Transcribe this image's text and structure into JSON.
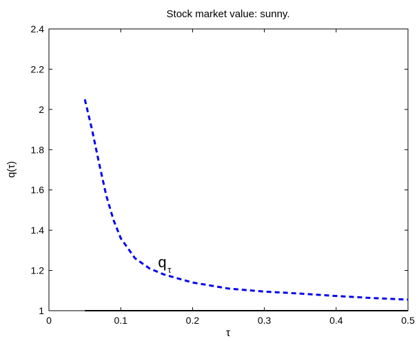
{
  "chart_data": {
    "type": "line",
    "title": "Stock market value: sunny.",
    "xlabel": "τ",
    "ylabel": "q(τ)",
    "xlim": [
      0,
      0.5
    ],
    "ylim": [
      1,
      2.4
    ],
    "xticks": [
      "0",
      "0.1",
      "0.2",
      "0.3",
      "0.4",
      "0.5"
    ],
    "yticks": [
      "1",
      "1.2",
      "1.4",
      "1.6",
      "1.8",
      "2",
      "2.2",
      "2.4"
    ],
    "grid": false,
    "legend": "none",
    "series": [
      {
        "name": "",
        "style": "dashed",
        "color": "#0000ee",
        "x": [
          0.05,
          0.06,
          0.07,
          0.08,
          0.09,
          0.1,
          0.12,
          0.14,
          0.16,
          0.18,
          0.2,
          0.25,
          0.3,
          0.35,
          0.4,
          0.45,
          0.5
        ],
        "y": [
          2.05,
          1.9,
          1.73,
          1.57,
          1.45,
          1.36,
          1.26,
          1.21,
          1.18,
          1.16,
          1.14,
          1.11,
          1.095,
          1.085,
          1.073,
          1.063,
          1.055
        ]
      },
      {
        "name": "",
        "style": "solid",
        "color": "#000000",
        "x": [
          0.05,
          0.5
        ],
        "y": [
          1.0,
          1.0
        ]
      }
    ],
    "annotations": [
      {
        "text": "q",
        "subscript": "τ",
        "x": 0.152,
        "y": 1.215
      }
    ]
  }
}
